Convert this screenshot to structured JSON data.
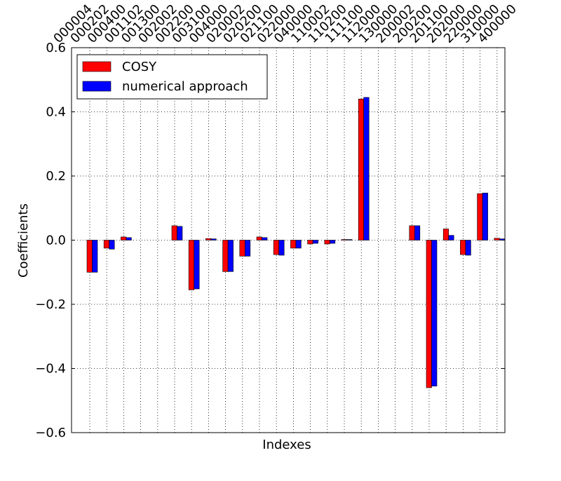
{
  "chart_data": {
    "type": "bar",
    "xlabel": "Indexes",
    "ylabel": "Coefficients",
    "categories": [
      "000004",
      "000202",
      "000400",
      "001102",
      "001300",
      "002002",
      "002200",
      "003100",
      "004000",
      "020002",
      "020200",
      "021100",
      "022000",
      "040000",
      "110002",
      "110200",
      "111100",
      "112000",
      "130000",
      "200002",
      "200200",
      "201100",
      "202000",
      "220000",
      "310000",
      "400000"
    ],
    "series": [
      {
        "name": "COSY",
        "color": "#ff0000",
        "values": [
          -0.1,
          -0.025,
          0.01,
          0,
          0,
          0.045,
          -0.155,
          0.005,
          -0.098,
          -0.05,
          0.01,
          -0.045,
          -0.025,
          -0.012,
          -0.012,
          0.002,
          0.44,
          0,
          0,
          0.045,
          -0.46,
          0.035,
          -0.045,
          0.145,
          0.006,
          null
        ]
      },
      {
        "name": "numerical approach",
        "color": "#0000ff",
        "values": [
          -0.1,
          -0.028,
          0.008,
          0,
          0,
          0.043,
          -0.152,
          0.004,
          -0.098,
          -0.05,
          0.008,
          -0.047,
          -0.025,
          -0.01,
          -0.01,
          0.002,
          0.445,
          0,
          0,
          0.045,
          -0.455,
          0.015,
          -0.047,
          0.147,
          0.004,
          null
        ]
      }
    ],
    "ylim": [
      -0.6,
      0.6
    ],
    "yticks": [
      {
        "value": -0.6,
        "label": "−0.6"
      },
      {
        "value": -0.4,
        "label": "−0.4"
      },
      {
        "value": -0.2,
        "label": "−0.2"
      },
      {
        "value": 0,
        "label": "0.0"
      },
      0.2,
      0.4,
      0.6
    ],
    "grid": true,
    "legend": "upper left"
  }
}
